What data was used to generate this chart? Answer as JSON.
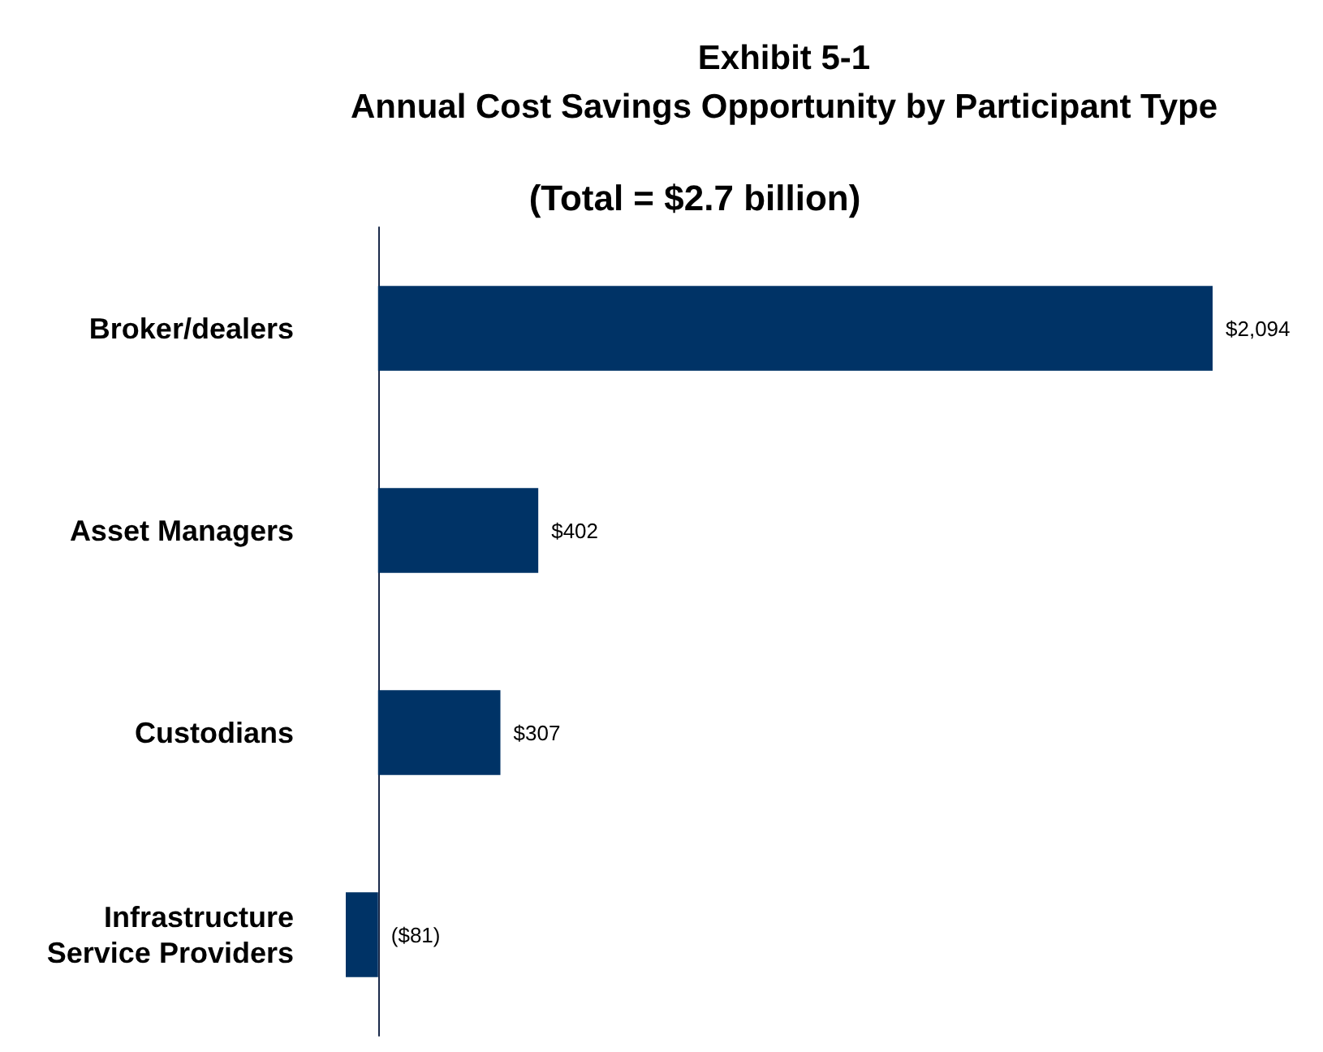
{
  "chart_data": {
    "type": "bar",
    "orientation": "horizontal",
    "title": "Exhibit 5-1\nAnnual Cost Savings Opportunity by Participant Type",
    "subtitle": "(Total = $2.7 billion)",
    "categories": [
      "Broker/dealers",
      "Asset Managers",
      "Custodians",
      "Infrastructure\nService Providers"
    ],
    "values": [
      2094,
      402,
      307,
      -81
    ],
    "value_labels": [
      "$2,094",
      "$402",
      "$307",
      "($81)"
    ],
    "color": "#003366"
  }
}
